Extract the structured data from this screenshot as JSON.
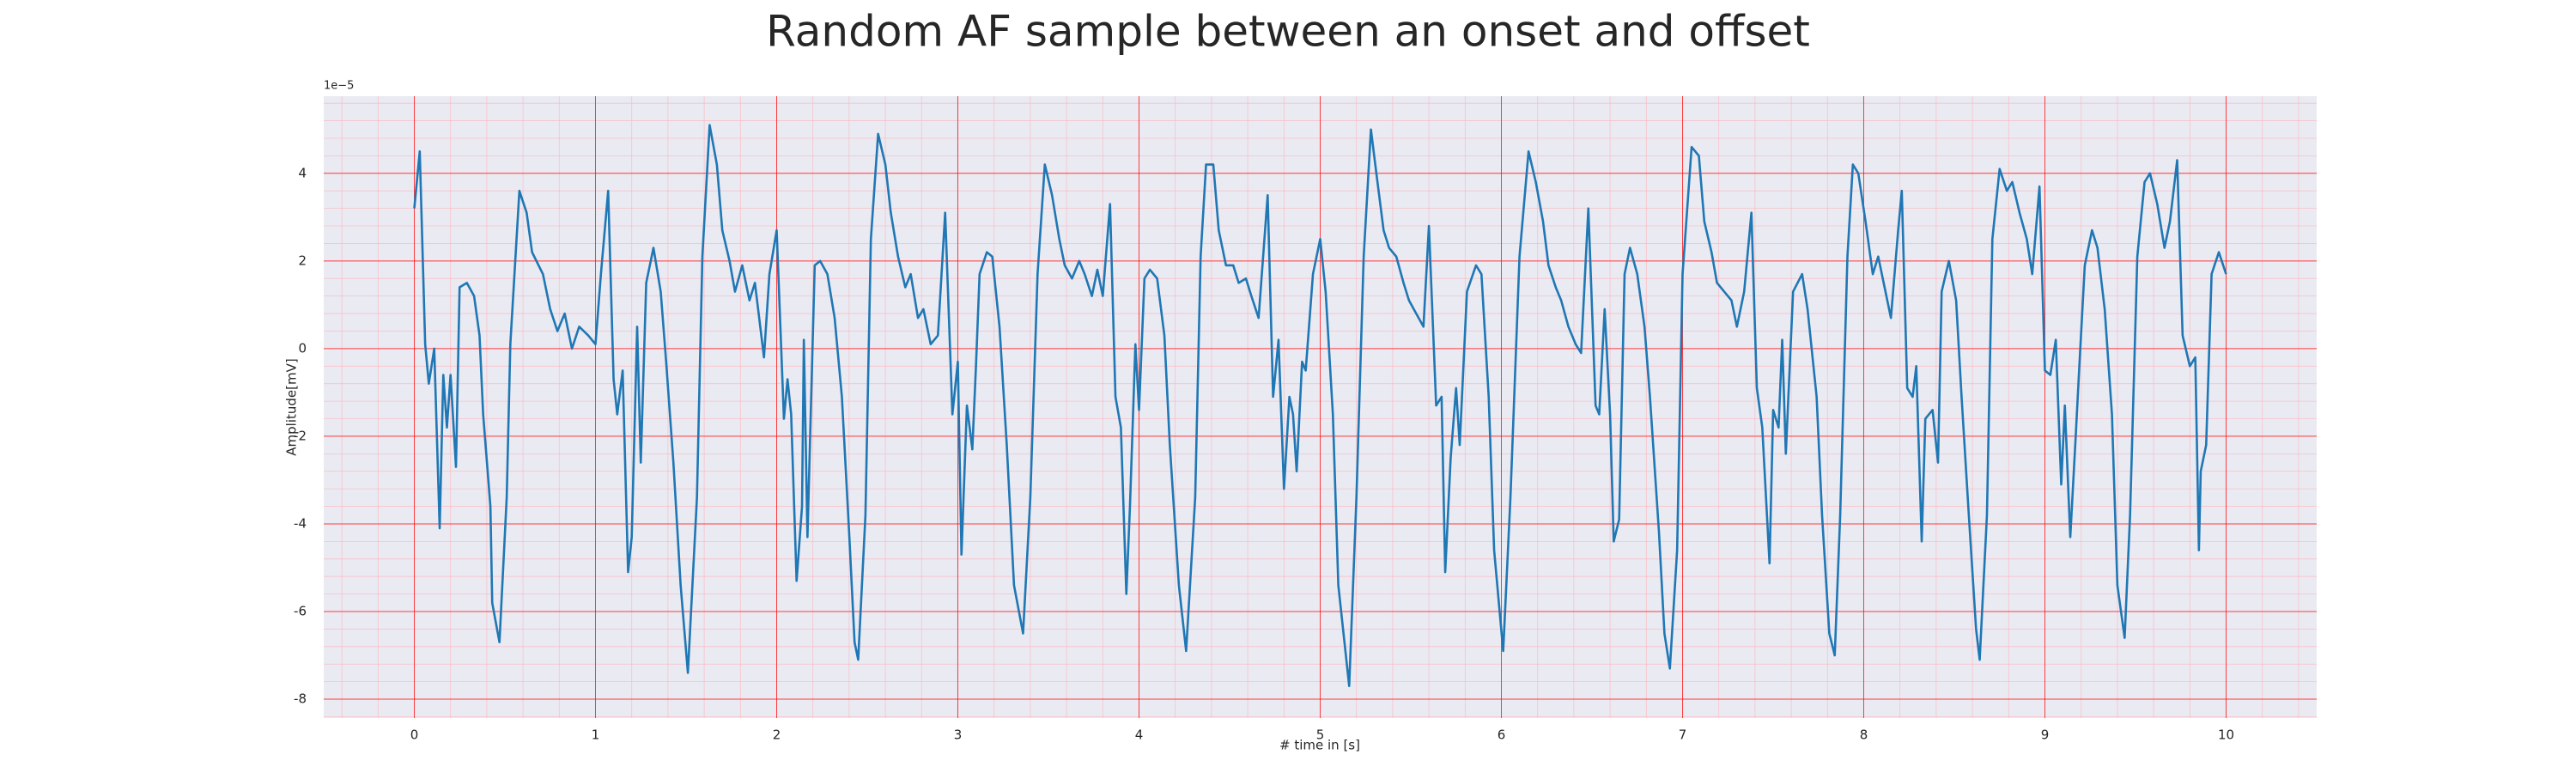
{
  "chart_data": {
    "type": "line",
    "title": "Random AF sample between an onset and offset",
    "x_label": "# time in [s]",
    "y_label": "Amplitude[mV]",
    "y_offset_label": "1e−5",
    "color": "#1f77b4",
    "background": "#eaeaf2",
    "grid": true,
    "minor_grid": true,
    "grid_color": "#ff0000",
    "minor_grid_color": "#ffb0b8",
    "xlim": [
      -0.5,
      10.5
    ],
    "ylim": [
      -8.43,
      5.76
    ],
    "xticks": [
      0,
      1,
      2,
      3,
      4,
      5,
      6,
      7,
      8,
      9,
      10
    ],
    "yticks": [
      -8,
      -6,
      -4,
      -2,
      0,
      2,
      4
    ],
    "x": [
      0.0,
      0.03,
      0.06,
      0.08,
      0.11,
      0.14,
      0.16,
      0.18,
      0.2,
      0.23,
      0.25,
      0.29,
      0.33,
      0.36,
      0.38,
      0.42,
      0.43,
      0.47,
      0.51,
      0.53,
      0.58,
      0.62,
      0.65,
      0.71,
      0.75,
      0.79,
      0.83,
      0.87,
      0.91,
      0.96,
      1.0,
      1.03,
      1.07,
      1.1,
      1.12,
      1.15,
      1.18,
      1.2,
      1.23,
      1.25,
      1.28,
      1.32,
      1.36,
      1.39,
      1.43,
      1.47,
      1.51,
      1.56,
      1.59,
      1.63,
      1.67,
      1.7,
      1.74,
      1.77,
      1.81,
      1.85,
      1.88,
      1.93,
      1.96,
      2.0,
      2.04,
      2.06,
      2.08,
      2.11,
      2.14,
      2.15,
      2.17,
      2.21,
      2.24,
      2.28,
      2.32,
      2.36,
      2.4,
      2.43,
      2.45,
      2.49,
      2.52,
      2.56,
      2.6,
      2.63,
      2.67,
      2.71,
      2.74,
      2.78,
      2.81,
      2.85,
      2.89,
      2.93,
      2.97,
      3.0,
      3.02,
      3.05,
      3.08,
      3.1,
      3.12,
      3.16,
      3.19,
      3.23,
      3.27,
      3.31,
      3.36,
      3.4,
      3.44,
      3.48,
      3.52,
      3.56,
      3.59,
      3.63,
      3.67,
      3.7,
      3.74,
      3.77,
      3.8,
      3.84,
      3.87,
      3.9,
      3.93,
      3.95,
      3.98,
      4.0,
      4.03,
      4.06,
      4.1,
      4.14,
      4.17,
      4.22,
      4.26,
      4.31,
      4.34,
      4.37,
      4.41,
      4.44,
      4.48,
      4.52,
      4.55,
      4.59,
      4.62,
      4.66,
      4.71,
      4.74,
      4.77,
      4.8,
      4.83,
      4.85,
      4.87,
      4.9,
      4.92,
      4.96,
      5.0,
      5.03,
      5.07,
      5.1,
      5.16,
      5.2,
      5.24,
      5.28,
      5.31,
      5.35,
      5.38,
      5.42,
      5.46,
      5.49,
      5.53,
      5.57,
      5.6,
      5.64,
      5.67,
      5.69,
      5.72,
      5.75,
      5.77,
      5.81,
      5.86,
      5.89,
      5.93,
      5.96,
      6.01,
      6.05,
      6.1,
      6.15,
      6.19,
      6.23,
      6.26,
      6.3,
      6.33,
      6.37,
      6.41,
      6.44,
      6.48,
      6.52,
      6.54,
      6.57,
      6.6,
      6.62,
      6.65,
      6.68,
      6.71,
      6.75,
      6.79,
      6.82,
      6.87,
      6.9,
      6.93,
      6.97,
      7.0,
      7.05,
      7.09,
      7.12,
      7.16,
      7.19,
      7.23,
      7.27,
      7.3,
      7.34,
      7.38,
      7.41,
      7.44,
      7.48,
      7.5,
      7.53,
      7.55,
      7.57,
      7.61,
      7.66,
      7.69,
      7.74,
      7.77,
      7.81,
      7.84,
      7.87,
      7.91,
      7.94,
      7.97,
      8.01,
      8.05,
      8.08,
      8.12,
      8.15,
      8.19,
      8.21,
      8.24,
      8.27,
      8.29,
      8.32,
      8.34,
      8.38,
      8.41,
      8.43,
      8.47,
      8.51,
      8.54,
      8.58,
      8.62,
      8.64,
      8.68,
      8.71,
      8.75,
      8.79,
      8.82,
      8.86,
      8.9,
      8.93,
      8.97,
      9.0,
      9.03,
      9.06,
      9.09,
      9.11,
      9.14,
      9.17,
      9.19,
      9.22,
      9.26,
      9.29,
      9.33,
      9.37,
      9.4,
      9.44,
      9.47,
      9.51,
      9.55,
      9.58,
      9.62,
      9.66,
      9.69,
      9.73,
      9.76,
      9.8,
      9.83,
      9.85,
      9.86,
      9.89,
      9.92,
      9.96,
      10.0
    ],
    "values": [
      3.2,
      4.5,
      0.1,
      -0.8,
      0.0,
      -4.1,
      -0.6,
      -1.8,
      -0.6,
      -2.7,
      1.4,
      1.5,
      1.2,
      0.3,
      -1.5,
      -3.6,
      -5.8,
      -6.7,
      -3.4,
      0.1,
      3.6,
      3.1,
      2.2,
      1.7,
      0.9,
      0.4,
      0.8,
      0.0,
      0.5,
      0.3,
      0.1,
      1.7,
      3.6,
      -0.7,
      -1.5,
      -0.5,
      -5.1,
      -4.3,
      0.5,
      -2.6,
      1.5,
      2.3,
      1.3,
      -0.3,
      -2.6,
      -5.4,
      -7.4,
      -3.4,
      2.1,
      5.1,
      4.2,
      2.7,
      2.0,
      1.3,
      1.9,
      1.1,
      1.5,
      -0.2,
      1.7,
      2.7,
      -1.6,
      -0.7,
      -1.5,
      -5.3,
      -3.6,
      0.2,
      -4.3,
      1.9,
      2.0,
      1.7,
      0.7,
      -1.1,
      -4.2,
      -6.7,
      -7.1,
      -3.8,
      2.5,
      4.9,
      4.2,
      3.1,
      2.1,
      1.4,
      1.7,
      0.7,
      0.9,
      0.1,
      0.3,
      3.1,
      -1.5,
      -0.3,
      -4.7,
      -1.3,
      -2.3,
      -0.4,
      1.7,
      2.2,
      2.1,
      0.5,
      -2.2,
      -5.4,
      -6.5,
      -3.4,
      1.7,
      4.2,
      3.5,
      2.5,
      1.9,
      1.6,
      2.0,
      1.7,
      1.2,
      1.8,
      1.2,
      3.3,
      -1.1,
      -1.8,
      -5.6,
      -3.6,
      0.1,
      -1.4,
      1.6,
      1.8,
      1.6,
      0.3,
      -2.2,
      -5.4,
      -6.9,
      -3.4,
      2.1,
      4.2,
      4.2,
      2.7,
      1.9,
      1.9,
      1.5,
      1.6,
      1.2,
      0.7,
      3.5,
      -1.1,
      0.2,
      -3.2,
      -1.1,
      -1.5,
      -2.8,
      -0.3,
      -0.5,
      1.7,
      2.5,
      1.3,
      -1.5,
      -5.4,
      -7.7,
      -3.4,
      2.1,
      5.0,
      4.0,
      2.7,
      2.3,
      2.1,
      1.5,
      1.1,
      0.8,
      0.5,
      2.8,
      -1.3,
      -1.1,
      -5.1,
      -2.5,
      -0.9,
      -2.2,
      1.3,
      1.9,
      1.7,
      -1.1,
      -4.6,
      -6.9,
      -3.4,
      2.1,
      4.5,
      3.8,
      2.9,
      1.9,
      1.4,
      1.1,
      0.5,
      0.1,
      -0.1,
      3.2,
      -1.3,
      -1.5,
      0.9,
      -1.5,
      -4.4,
      -3.9,
      1.7,
      2.3,
      1.7,
      0.5,
      -1.1,
      -4.2,
      -6.5,
      -7.3,
      -4.6,
      1.7,
      4.6,
      4.4,
      2.9,
      2.2,
      1.5,
      1.3,
      1.1,
      0.5,
      1.3,
      3.1,
      -0.9,
      -1.8,
      -4.9,
      -1.4,
      -1.8,
      0.2,
      -2.4,
      1.3,
      1.7,
      0.9,
      -1.1,
      -3.8,
      -6.5,
      -7.0,
      -3.8,
      2.1,
      4.2,
      4.0,
      2.9,
      1.7,
      2.1,
      1.3,
      0.7,
      2.7,
      3.6,
      -0.9,
      -1.1,
      -0.4,
      -4.4,
      -1.6,
      -1.4,
      -2.6,
      1.3,
      2.0,
      1.1,
      -1.1,
      -3.8,
      -6.4,
      -7.1,
      -3.8,
      2.5,
      4.1,
      3.6,
      3.8,
      3.1,
      2.5,
      1.7,
      3.7,
      -0.5,
      -0.6,
      0.2,
      -3.1,
      -1.3,
      -4.3,
      -2.0,
      -0.4,
      1.9,
      2.7,
      2.3,
      0.9,
      -1.5,
      -5.4,
      -6.6,
      -3.8,
      2.1,
      3.8,
      4.0,
      3.3,
      2.3,
      2.9,
      4.3,
      0.3,
      -0.4,
      -0.2,
      -4.6,
      -2.8,
      -2.2,
      1.7,
      2.2,
      1.7
    ]
  }
}
